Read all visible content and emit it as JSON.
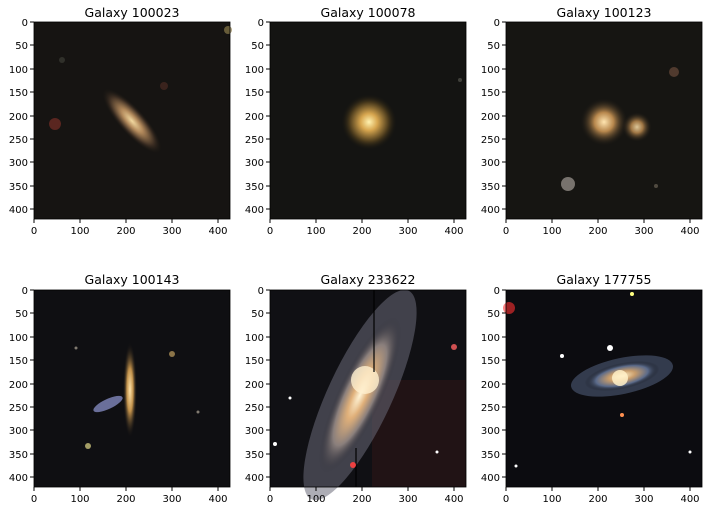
{
  "figure": {
    "background": "#ffffff",
    "panels": [
      {
        "title": "Galaxy 100023",
        "x_ticks": [
          "0",
          "100",
          "200",
          "300",
          "400"
        ],
        "y_ticks": [
          "0",
          "50",
          "100",
          "150",
          "200",
          "250",
          "300",
          "350",
          "400"
        ],
        "image": "small edge-on elliptical galaxy, tilted, dark background"
      },
      {
        "title": "Galaxy 100078",
        "x_ticks": [
          "0",
          "100",
          "200",
          "300",
          "400"
        ],
        "y_ticks": [
          "0",
          "50",
          "100",
          "150",
          "200",
          "250",
          "300",
          "350",
          "400"
        ],
        "image": "compact round galaxy, noisy dark background"
      },
      {
        "title": "Galaxy 100123",
        "x_ticks": [
          "0",
          "100",
          "200",
          "300",
          "400"
        ],
        "y_ticks": [
          "0",
          "50",
          "100",
          "150",
          "200",
          "250",
          "300",
          "350",
          "400"
        ],
        "image": "pair of round galaxies with small stars"
      },
      {
        "title": "Galaxy 100143",
        "x_ticks": [
          "0",
          "100",
          "200",
          "300",
          "400"
        ],
        "y_ticks": [
          "0",
          "50",
          "100",
          "150",
          "200",
          "250",
          "300",
          "350",
          "400"
        ],
        "image": "vertical edge-on galaxy with bluish companion"
      },
      {
        "title": "Galaxy 233622",
        "x_ticks": [
          "0",
          "100",
          "200",
          "300",
          "400"
        ],
        "y_ticks": [
          "0",
          "50",
          "100",
          "150",
          "200",
          "250",
          "300",
          "350",
          "400"
        ],
        "image": "large bright spiral galaxy filling frame"
      },
      {
        "title": "Galaxy 177755",
        "x_ticks": [
          "0",
          "100",
          "200",
          "300",
          "400"
        ],
        "y_ticks": [
          "0",
          "50",
          "100",
          "150",
          "200",
          "250",
          "300",
          "350",
          "400"
        ],
        "image": "barred spiral galaxy with stars"
      }
    ]
  }
}
